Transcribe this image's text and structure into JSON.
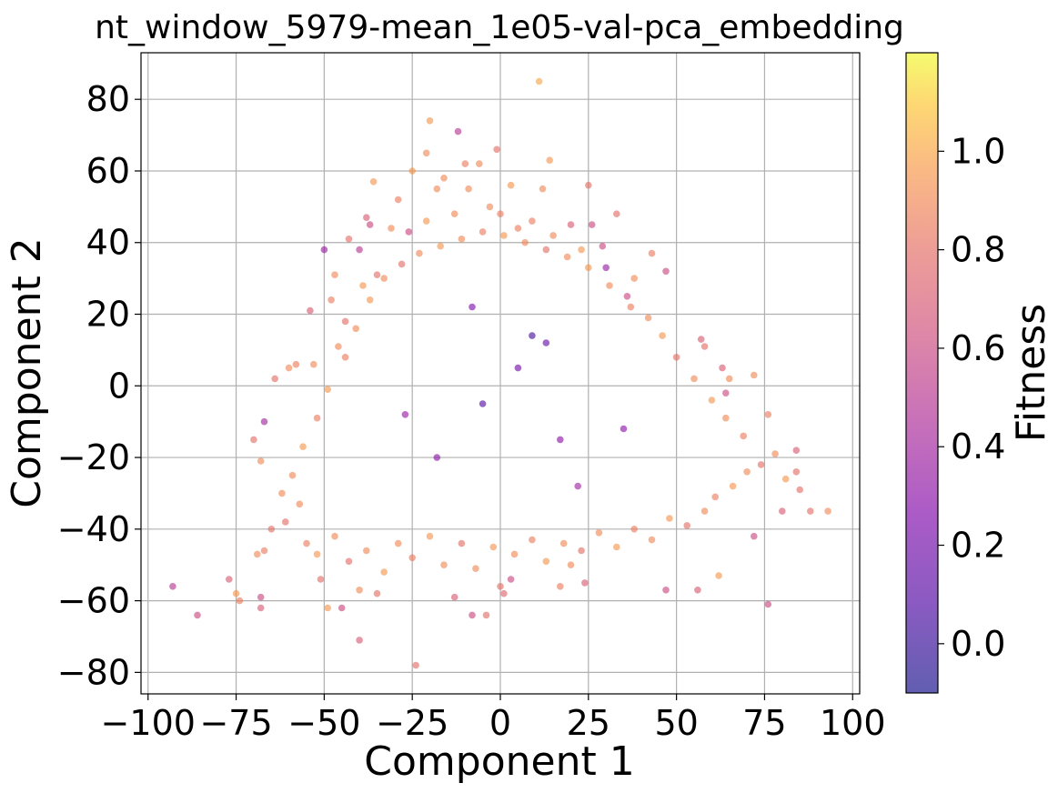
{
  "chart_data": {
    "type": "scatter",
    "title": "nt_window_5979-mean_1e05-val-pca_embedding",
    "xlabel": "Component 1",
    "ylabel": "Component 2",
    "xlim": [
      -102,
      102
    ],
    "ylim": [
      -86,
      93
    ],
    "xticks": [
      -100,
      -75,
      -50,
      -25,
      0,
      25,
      50,
      75,
      100
    ],
    "xtick_labels": [
      "−100",
      "−75",
      "−50",
      "−25",
      "0",
      "25",
      "50",
      "75",
      "100"
    ],
    "yticks": [
      -80,
      -60,
      -40,
      -20,
      0,
      20,
      40,
      60,
      80
    ],
    "ytick_labels": [
      "−80",
      "−60",
      "−40",
      "−20",
      "0",
      "20",
      "40",
      "60",
      "80"
    ],
    "grid": true,
    "colormap": "plasma",
    "point_alpha": 0.6,
    "colorbar": {
      "label": "Fitness",
      "range": [
        -0.1,
        1.2
      ],
      "ticks": [
        0.0,
        0.2,
        0.4,
        0.6,
        0.8,
        1.0
      ],
      "tick_labels": [
        "0.0",
        "0.2",
        "0.4",
        "0.6",
        "0.8",
        "1.0"
      ]
    },
    "points": [
      [
        11,
        85,
        1.0
      ],
      [
        -20,
        74,
        0.95
      ],
      [
        -12,
        71,
        0.5
      ],
      [
        14,
        63,
        0.95
      ],
      [
        -1,
        66,
        0.8
      ],
      [
        -21,
        65,
        0.9
      ],
      [
        -10,
        62,
        0.85
      ],
      [
        -6,
        62,
        0.9
      ],
      [
        -36,
        57,
        0.95
      ],
      [
        25,
        56,
        0.8
      ],
      [
        -18,
        55,
        0.9
      ],
      [
        -43,
        41,
        0.8
      ],
      [
        -40,
        38,
        0.5
      ],
      [
        -38,
        47,
        0.7
      ],
      [
        -37,
        45,
        0.6
      ],
      [
        -35,
        31,
        0.8
      ],
      [
        -47,
        31,
        0.9
      ],
      [
        -48,
        24,
        0.85
      ],
      [
        -50,
        38,
        0.35
      ],
      [
        -54,
        21,
        0.7
      ],
      [
        -53,
        6,
        0.9
      ],
      [
        -58,
        6,
        0.85
      ],
      [
        -60,
        5,
        0.9
      ],
      [
        -64,
        2,
        0.8
      ],
      [
        -67,
        -10,
        0.4
      ],
      [
        -68,
        -21,
        0.9
      ],
      [
        -70,
        -15,
        0.8
      ],
      [
        -62,
        -30,
        0.9
      ],
      [
        -65,
        -40,
        0.8
      ],
      [
        -67,
        -46,
        0.85
      ],
      [
        -69,
        -47,
        0.9
      ],
      [
        -75,
        -58,
        0.95
      ],
      [
        -77,
        -54,
        0.7
      ],
      [
        -74,
        -60,
        0.85
      ],
      [
        -68,
        -59,
        0.6
      ],
      [
        -68,
        -62,
        0.7
      ],
      [
        -93,
        -56,
        0.5
      ],
      [
        -86,
        -64,
        0.6
      ],
      [
        -40,
        -71,
        0.7
      ],
      [
        -24,
        -78,
        0.8
      ],
      [
        -51,
        -54,
        0.8
      ],
      [
        -45,
        -62,
        0.6
      ],
      [
        -49,
        -62,
        0.95
      ],
      [
        -40,
        -57,
        0.9
      ],
      [
        -35,
        -58,
        0.8
      ],
      [
        -13,
        -59,
        0.7
      ],
      [
        -8,
        -64,
        0.6
      ],
      [
        -4,
        -64,
        0.8
      ],
      [
        1,
        -58,
        0.75
      ],
      [
        0,
        -56,
        0.8
      ],
      [
        3,
        -54,
        0.6
      ],
      [
        17,
        -56,
        0.85
      ],
      [
        20,
        -50,
        0.9
      ],
      [
        24,
        -55,
        0.7
      ],
      [
        47,
        -57,
        0.6
      ],
      [
        56,
        -57,
        0.7
      ],
      [
        62,
        -53,
        0.95
      ],
      [
        76,
        -61,
        0.6
      ],
      [
        72,
        -42,
        0.6
      ],
      [
        93,
        -35,
        0.9
      ],
      [
        88,
        -35,
        0.8
      ],
      [
        85,
        -29,
        0.8
      ],
      [
        84,
        -24,
        0.8
      ],
      [
        84,
        -18,
        0.7
      ],
      [
        80,
        -35,
        0.7
      ],
      [
        76,
        -8,
        0.85
      ],
      [
        72,
        3,
        0.9
      ],
      [
        63,
        5,
        0.7
      ],
      [
        65,
        2,
        0.9
      ],
      [
        58,
        11,
        0.8
      ],
      [
        57,
        13,
        0.7
      ],
      [
        64,
        -2,
        0.6
      ],
      [
        47,
        32,
        0.6
      ],
      [
        43,
        37,
        0.85
      ],
      [
        33,
        48,
        0.8
      ],
      [
        20,
        45,
        0.7
      ],
      [
        12,
        55,
        0.9
      ],
      [
        3,
        56,
        0.95
      ],
      [
        36,
        25,
        0.6
      ],
      [
        38,
        30,
        0.9
      ],
      [
        26,
        45,
        0.6
      ],
      [
        29,
        39,
        0.6
      ],
      [
        30,
        33,
        0.35
      ],
      [
        0,
        48,
        0.85
      ],
      [
        -9,
        55,
        0.9
      ],
      [
        -25,
        60,
        0.95
      ],
      [
        -29,
        52,
        0.85
      ],
      [
        -31,
        44,
        0.9
      ],
      [
        -16,
        58,
        0.9
      ],
      [
        9,
        46,
        0.85
      ],
      [
        -26,
        43,
        0.6
      ],
      [
        -21,
        46,
        0.95
      ],
      [
        -13,
        48,
        0.9
      ],
      [
        -3,
        50,
        0.9
      ],
      [
        5,
        44,
        0.85
      ],
      [
        15,
        42,
        0.9
      ],
      [
        23,
        38,
        0.95
      ],
      [
        -39,
        28,
        0.95
      ],
      [
        -44,
        18,
        0.8
      ],
      [
        -46,
        11,
        0.9
      ],
      [
        -49,
        -1,
        0.95
      ],
      [
        -52,
        -9,
        0.85
      ],
      [
        -56,
        -17,
        0.95
      ],
      [
        -59,
        -25,
        0.9
      ],
      [
        -57,
        -33,
        0.9
      ],
      [
        -61,
        -38,
        0.8
      ],
      [
        -55,
        -44,
        0.85
      ],
      [
        -52,
        -47,
        0.95
      ],
      [
        -47,
        -42,
        0.9
      ],
      [
        -43,
        -49,
        0.8
      ],
      [
        -38,
        -46,
        0.9
      ],
      [
        -33,
        -52,
        0.95
      ],
      [
        -29,
        -44,
        0.9
      ],
      [
        -25,
        -48,
        0.85
      ],
      [
        -20,
        -42,
        0.95
      ],
      [
        -16,
        -50,
        0.9
      ],
      [
        -11,
        -44,
        0.8
      ],
      [
        -7,
        -51,
        0.9
      ],
      [
        -2,
        -45,
        0.95
      ],
      [
        4,
        -47,
        0.9
      ],
      [
        9,
        -43,
        0.85
      ],
      [
        13,
        -49,
        0.95
      ],
      [
        18,
        -44,
        0.9
      ],
      [
        23,
        -46,
        0.8
      ],
      [
        28,
        -41,
        0.9
      ],
      [
        33,
        -45,
        0.95
      ],
      [
        38,
        -40,
        0.85
      ],
      [
        43,
        -43,
        0.9
      ],
      [
        48,
        -37,
        0.95
      ],
      [
        53,
        -39,
        0.8
      ],
      [
        58,
        -35,
        0.9
      ],
      [
        61,
        -31,
        0.85
      ],
      [
        66,
        -28,
        0.95
      ],
      [
        70,
        -24,
        0.9
      ],
      [
        74,
        -22,
        0.8
      ],
      [
        78,
        -19,
        0.9
      ],
      [
        81,
        -26,
        0.95
      ],
      [
        69,
        -14,
        0.85
      ],
      [
        64,
        -9,
        0.9
      ],
      [
        60,
        -4,
        0.95
      ],
      [
        55,
        2,
        0.9
      ],
      [
        50,
        8,
        0.8
      ],
      [
        46,
        14,
        0.95
      ],
      [
        42,
        19,
        0.9
      ],
      [
        37,
        22,
        0.85
      ],
      [
        31,
        28,
        0.9
      ],
      [
        25,
        33,
        0.95
      ],
      [
        19,
        36,
        0.9
      ],
      [
        13,
        38,
        0.8
      ],
      [
        7,
        40,
        0.9
      ],
      [
        1,
        42,
        0.95
      ],
      [
        -5,
        43,
        0.85
      ],
      [
        -11,
        41,
        0.9
      ],
      [
        -17,
        39,
        0.95
      ],
      [
        -23,
        37,
        0.9
      ],
      [
        -28,
        34,
        0.8
      ],
      [
        -33,
        30,
        0.9
      ],
      [
        -37,
        24,
        0.95
      ],
      [
        -41,
        16,
        0.9
      ],
      [
        -44,
        8,
        0.85
      ],
      [
        9,
        14,
        0.05
      ],
      [
        -5,
        -5,
        0.1
      ],
      [
        -18,
        -20,
        0.3
      ],
      [
        5,
        5,
        0.2
      ],
      [
        13,
        12,
        0.15
      ],
      [
        -27,
        -8,
        0.35
      ],
      [
        35,
        -12,
        0.3
      ],
      [
        22,
        -28,
        0.4
      ],
      [
        -8,
        22,
        0.25
      ],
      [
        17,
        -15,
        0.3
      ]
    ]
  }
}
